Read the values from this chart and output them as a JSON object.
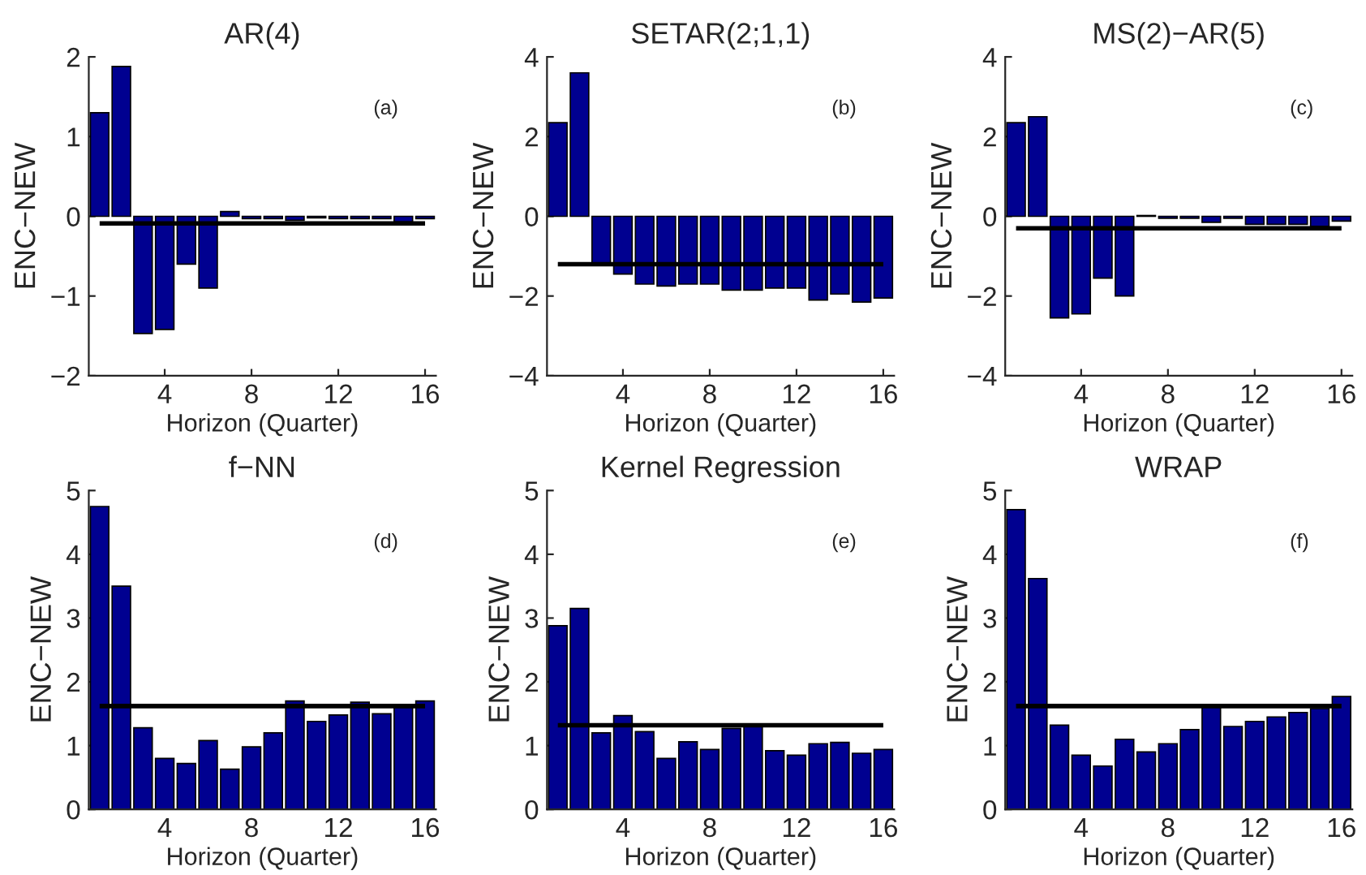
{
  "chart_data": [
    {
      "type": "bar",
      "title": "AR(4)",
      "xlabel": "Horizon (Quarter)",
      "ylabel": "ENC−NEW",
      "annotations": [
        "(a)"
      ],
      "x": [
        1,
        2,
        3,
        4,
        5,
        6,
        7,
        8,
        9,
        10,
        11,
        12,
        13,
        14,
        15,
        16
      ],
      "color": "#000090",
      "values": [
        1.3,
        1.88,
        -1.47,
        -1.42,
        -0.6,
        -0.9,
        0.06,
        -0.03,
        -0.03,
        -0.05,
        -0.02,
        -0.03,
        -0.03,
        -0.03,
        -0.07,
        -0.03
      ],
      "xlim": [
        0.5,
        16.5
      ],
      "xticks": [
        4,
        8,
        12,
        16
      ],
      "ylim": [
        -2,
        2
      ],
      "yticks": [
        -2,
        -1,
        0,
        1,
        2
      ],
      "ref_lines": [
        {
          "axis": "y",
          "value": -0.09,
          "color": "#000000"
        }
      ],
      "grid": false,
      "legend": false
    },
    {
      "type": "bar",
      "title": "SETAR(2;1,1)",
      "xlabel": "Horizon (Quarter)",
      "ylabel": "ENC−NEW",
      "annotations": [
        "(b)"
      ],
      "x": [
        1,
        2,
        3,
        4,
        5,
        6,
        7,
        8,
        9,
        10,
        11,
        12,
        13,
        14,
        15,
        16
      ],
      "color": "#000090",
      "values": [
        2.35,
        3.6,
        -1.2,
        -1.45,
        -1.7,
        -1.75,
        -1.7,
        -1.7,
        -1.85,
        -1.85,
        -1.8,
        -1.8,
        -2.1,
        -1.95,
        -2.15,
        -2.05
      ],
      "xlim": [
        0.5,
        16.5
      ],
      "xticks": [
        4,
        8,
        12,
        16
      ],
      "ylim": [
        -4,
        4
      ],
      "yticks": [
        -4,
        -2,
        0,
        2,
        4
      ],
      "ref_lines": [
        {
          "axis": "y",
          "value": -1.2,
          "color": "#000000"
        }
      ],
      "grid": false,
      "legend": false
    },
    {
      "type": "bar",
      "title": "MS(2)−AR(5)",
      "xlabel": "Horizon (Quarter)",
      "ylabel": "ENC−NEW",
      "annotations": [
        "(c)"
      ],
      "x": [
        1,
        2,
        3,
        4,
        5,
        6,
        7,
        8,
        9,
        10,
        11,
        12,
        13,
        14,
        15,
        16
      ],
      "color": "#000090",
      "values": [
        2.35,
        2.5,
        -2.55,
        -2.45,
        -1.55,
        -2.0,
        0.02,
        -0.05,
        -0.05,
        -0.15,
        -0.05,
        -0.2,
        -0.2,
        -0.2,
        -0.25,
        -0.12
      ],
      "xlim": [
        0.5,
        16.5
      ],
      "xticks": [
        4,
        8,
        12,
        16
      ],
      "ylim": [
        -4,
        4
      ],
      "yticks": [
        -4,
        -2,
        0,
        2,
        4
      ],
      "ref_lines": [
        {
          "axis": "y",
          "value": -0.3,
          "color": "#000000"
        }
      ],
      "grid": false,
      "legend": false
    },
    {
      "type": "bar",
      "title": "f−NN",
      "xlabel": "Horizon (Quarter)",
      "ylabel": "ENC−NEW",
      "annotations": [
        "(d)"
      ],
      "x": [
        1,
        2,
        3,
        4,
        5,
        6,
        7,
        8,
        9,
        10,
        11,
        12,
        13,
        14,
        15,
        16
      ],
      "color": "#000090",
      "values": [
        4.75,
        3.5,
        1.28,
        0.8,
        0.72,
        1.08,
        0.63,
        0.98,
        1.2,
        1.7,
        1.38,
        1.48,
        1.68,
        1.5,
        1.6,
        1.7
      ],
      "xlim": [
        0.5,
        16.5
      ],
      "xticks": [
        4,
        8,
        12,
        16
      ],
      "ylim": [
        0,
        5
      ],
      "yticks": [
        0,
        1,
        2,
        3,
        4,
        5
      ],
      "ref_lines": [
        {
          "axis": "y",
          "value": 1.62,
          "color": "#000000"
        }
      ],
      "grid": false,
      "legend": false
    },
    {
      "type": "bar",
      "title": "Kernel Regression",
      "xlabel": "Horizon (Quarter)",
      "ylabel": "ENC−NEW",
      "annotations": [
        "(e)"
      ],
      "x": [
        1,
        2,
        3,
        4,
        5,
        6,
        7,
        8,
        9,
        10,
        11,
        12,
        13,
        14,
        15,
        16
      ],
      "color": "#000090",
      "values": [
        2.88,
        3.15,
        1.2,
        1.47,
        1.22,
        0.8,
        1.06,
        0.94,
        1.27,
        1.32,
        0.92,
        0.85,
        1.03,
        1.05,
        0.88,
        0.94
      ],
      "xlim": [
        0.5,
        16.5
      ],
      "xticks": [
        4,
        8,
        12,
        16
      ],
      "ylim": [
        0,
        5
      ],
      "yticks": [
        0,
        1,
        2,
        3,
        4,
        5
      ],
      "ref_lines": [
        {
          "axis": "y",
          "value": 1.32,
          "color": "#000000"
        }
      ],
      "grid": false,
      "legend": false
    },
    {
      "type": "bar",
      "title": "WRAP",
      "xlabel": "Horizon (Quarter)",
      "ylabel": "ENC−NEW",
      "annotations": [
        "(f)"
      ],
      "x": [
        1,
        2,
        3,
        4,
        5,
        6,
        7,
        8,
        9,
        10,
        11,
        12,
        13,
        14,
        15,
        16
      ],
      "color": "#000090",
      "values": [
        4.7,
        3.62,
        1.32,
        0.85,
        0.68,
        1.1,
        0.9,
        1.03,
        1.25,
        1.62,
        1.3,
        1.38,
        1.45,
        1.52,
        1.58,
        1.77
      ],
      "xlim": [
        0.5,
        16.5
      ],
      "xticks": [
        4,
        8,
        12,
        16
      ],
      "ylim": [
        0,
        5
      ],
      "yticks": [
        0,
        1,
        2,
        3,
        4,
        5
      ],
      "ref_lines": [
        {
          "axis": "y",
          "value": 1.62,
          "color": "#000000"
        }
      ],
      "grid": false,
      "legend": false
    }
  ]
}
